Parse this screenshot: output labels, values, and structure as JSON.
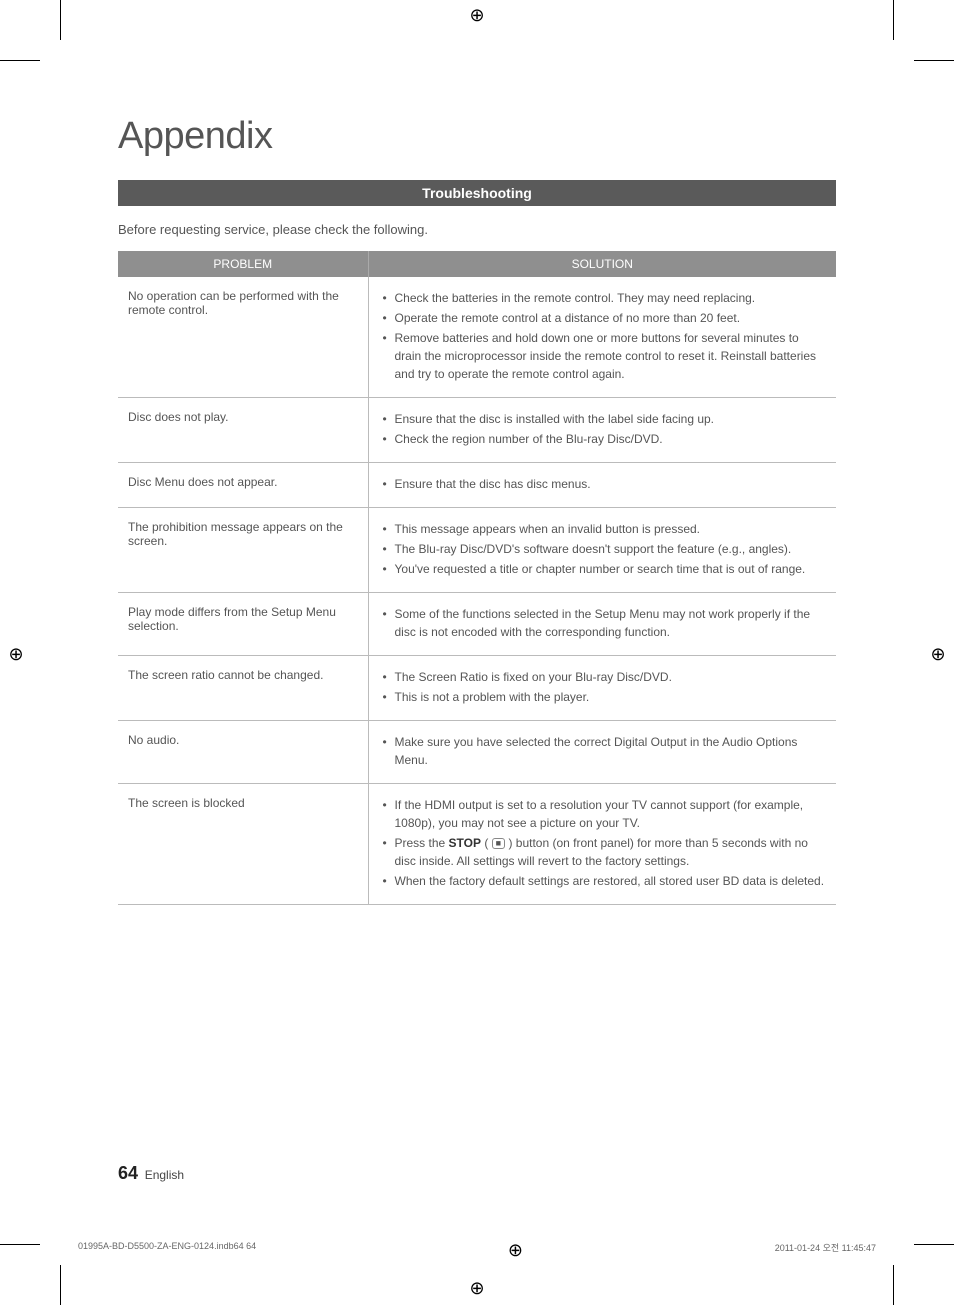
{
  "title": "Appendix",
  "section_bar": "Troubleshooting",
  "intro": "Before requesting service, please check the following.",
  "table": {
    "headers": {
      "problem": "PROBLEM",
      "solution": "SOLUTION"
    },
    "rows": [
      {
        "problem": "No operation can be performed with the remote control.",
        "solutions": [
          "Check the batteries in the remote control. They may need replacing.",
          "Operate the remote control at a distance of no more than 20 feet.",
          "Remove batteries and hold down one or more buttons for several minutes to drain the microprocessor inside the remote control to reset it. Reinstall batteries and try to operate the remote control again."
        ]
      },
      {
        "problem": "Disc does not play.",
        "solutions": [
          "Ensure that the disc is installed with the label side facing up.",
          "Check the region number of the Blu-ray Disc/DVD."
        ]
      },
      {
        "problem": "Disc Menu does not appear.",
        "solutions": [
          "Ensure that the disc has disc menus."
        ]
      },
      {
        "problem": "The prohibition message appears on the screen.",
        "solutions": [
          "This message appears when an invalid button is pressed.",
          "The Blu-ray Disc/DVD's software doesn't support the feature (e.g., angles).",
          "You've requested a title or chapter number or search time that is out of range."
        ]
      },
      {
        "problem": "Play mode differs from the Setup Menu selection.",
        "solutions": [
          "Some of the functions selected in the Setup Menu may not work properly if the disc is not encoded with the corresponding function."
        ]
      },
      {
        "problem": "The screen ratio cannot be changed.",
        "solutions": [
          "The Screen Ratio is fixed on your Blu-ray Disc/DVD.",
          "This is not a problem with the player."
        ]
      },
      {
        "problem": "No audio.",
        "solutions": [
          "Make sure you have selected the correct Digital Output in the Audio Options Menu."
        ]
      },
      {
        "problem": "The screen is blocked",
        "solutions_raw": true,
        "s1": "If the HDMI output is set to a resolution your TV cannot support (for example, 1080p), you may not see a picture on your TV.",
        "s2a": "Press the ",
        "s2b_bold": "STOP",
        "s2c": " ( ",
        "s2d": " ) button (on front panel) for more than 5 seconds with no disc inside. All settings will revert to the factory settings.",
        "s3": "When the factory default settings are restored, all stored user BD data is deleted."
      }
    ]
  },
  "footer": {
    "page_number": "64",
    "lang": "English"
  },
  "print": {
    "file": "01995A-BD-D5500-ZA-ENG-0124.indb64   64",
    "timestamp": "2011-01-24   오전 11:45:47"
  }
}
